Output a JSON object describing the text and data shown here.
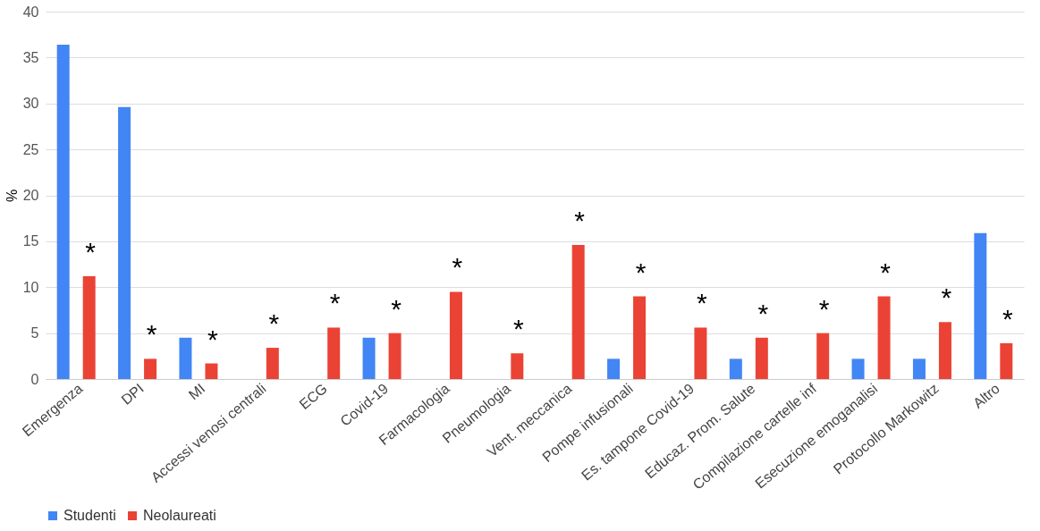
{
  "chart_data": {
    "type": "bar",
    "ylabel": "%",
    "categories": [
      "Emergenza",
      "DPI",
      "MI",
      "Accessi venosi centrali",
      "ECG",
      "Covid-19",
      "Farmacologia",
      "Pneumologia",
      "Vent. meccanica",
      "Pompe infusionali",
      "Es. tampone Covid-19",
      "Educaz. Prom. Salute",
      "Compilazione cartelle inf",
      "Esecuzione emoganalisi",
      "Protocollo Markowitz",
      "Altro"
    ],
    "series": [
      {
        "name": "Studenti",
        "color": "#4285f4",
        "values": [
          36.4,
          29.6,
          4.5,
          null,
          null,
          4.5,
          null,
          null,
          null,
          2.2,
          null,
          2.2,
          null,
          2.2,
          2.2,
          15.9
        ]
      },
      {
        "name": "Neolaureati",
        "color": "#ea4335",
        "values": [
          11.2,
          2.2,
          1.7,
          3.4,
          5.6,
          5.0,
          9.5,
          2.8,
          14.6,
          9.0,
          5.6,
          4.5,
          5.0,
          9.0,
          6.2,
          3.9
        ]
      }
    ],
    "ylim": [
      0,
      40
    ],
    "yticks": [
      0,
      5,
      10,
      15,
      20,
      25,
      30,
      35,
      40
    ],
    "grid": "y",
    "legend": "bottom",
    "annotations": [
      "*",
      "*",
      "*",
      "*",
      "*",
      "*",
      "*",
      "*",
      "*",
      "*",
      "*",
      "*",
      "*",
      "*",
      "*",
      "*"
    ]
  }
}
